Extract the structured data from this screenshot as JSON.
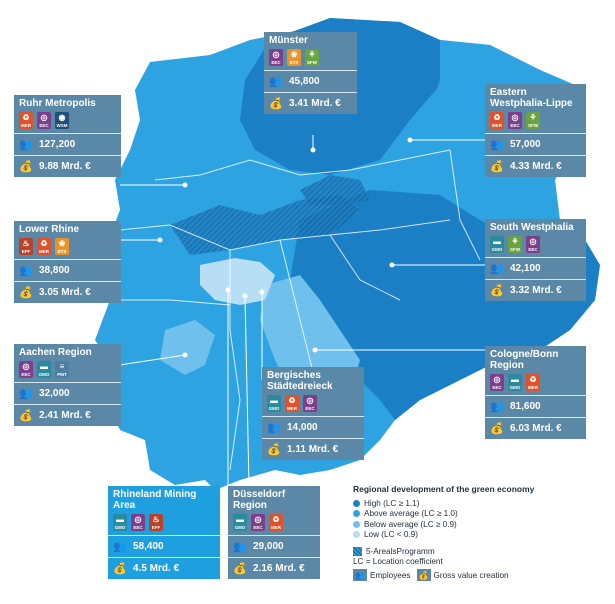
{
  "colors": {
    "high": "#1a7fc4",
    "above_average": "#2ea3e2",
    "below_average": "#6fc0ec",
    "low": "#b7def5",
    "card": "#5b88a6",
    "card_highlight": "#1d9fe0",
    "eec": "#7b3f8c",
    "mer": "#e0522a",
    "ets": "#e8942b",
    "sfw": "#6aa441",
    "gmo": "#2a8aa0",
    "wsm": "#1f4f7a",
    "eff": "#b8432a",
    "pmt": "#4e7ea3"
  },
  "regions": [
    {
      "name": "Münster",
      "icons": [
        {
          "code": "EEC",
          "icon": "lightbulb-icon"
        },
        {
          "code": "ETS",
          "icon": "wind-turbine-icon"
        },
        {
          "code": "SFW",
          "icon": "plant-icon"
        }
      ],
      "employees": "45,800",
      "gva": "3.41 Mrd. €"
    },
    {
      "name": "Ruhr Metropolis",
      "icons": [
        {
          "code": "MER",
          "icon": "recycle-icon"
        },
        {
          "code": "EEC",
          "icon": "lightbulb-icon"
        },
        {
          "code": "WSM",
          "icon": "water-drop-icon"
        }
      ],
      "employees": "127,200",
      "gva": "9.88 Mrd. €"
    },
    {
      "name": "Eastern Westphalia-Lippe",
      "icons": [
        {
          "code": "MER",
          "icon": "recycle-icon"
        },
        {
          "code": "EEC",
          "icon": "lightbulb-icon"
        },
        {
          "code": "SFW",
          "icon": "plant-icon"
        }
      ],
      "employees": "57,000",
      "gva": "4.33 Mrd. €"
    },
    {
      "name": "Lower Rhine",
      "icons": [
        {
          "code": "EFF",
          "icon": "flame-icon"
        },
        {
          "code": "MER",
          "icon": "recycle-icon"
        },
        {
          "code": "ETS",
          "icon": "wind-turbine-icon"
        }
      ],
      "employees": "38,800",
      "gva": "3.05 Mrd. €"
    },
    {
      "name": "South Westphalia",
      "icons": [
        {
          "code": "GMO",
          "icon": "vehicle-icon"
        },
        {
          "code": "SFW",
          "icon": "plant-icon"
        },
        {
          "code": "EEC",
          "icon": "lightbulb-icon"
        }
      ],
      "employees": "42,100",
      "gva": "3.32 Mrd. €"
    },
    {
      "name": "Aachen Region",
      "icons": [
        {
          "code": "EEC",
          "icon": "lightbulb-icon"
        },
        {
          "code": "GMO",
          "icon": "vehicle-icon"
        },
        {
          "code": "PMT",
          "icon": "process-icon"
        }
      ],
      "employees": "32,000",
      "gva": "2.41 Mrd. €"
    },
    {
      "name": "Cologne/Bonn Region",
      "icons": [
        {
          "code": "EEC",
          "icon": "lightbulb-icon"
        },
        {
          "code": "GMO",
          "icon": "vehicle-icon"
        },
        {
          "code": "MER",
          "icon": "recycle-icon"
        }
      ],
      "employees": "81,600",
      "gva": "6.03 Mrd. €"
    },
    {
      "name": "Bergisches Städtedreieck",
      "icons": [
        {
          "code": "GMO",
          "icon": "vehicle-icon"
        },
        {
          "code": "MER",
          "icon": "recycle-icon"
        },
        {
          "code": "EEC",
          "icon": "lightbulb-icon"
        }
      ],
      "employees": "14,000",
      "gva": "1.11 Mrd. €"
    },
    {
      "name": "Rhineland Mining Area",
      "icons": [
        {
          "code": "GMO",
          "icon": "vehicle-icon"
        },
        {
          "code": "EEC",
          "icon": "lightbulb-icon"
        },
        {
          "code": "EFF",
          "icon": "flame-icon"
        }
      ],
      "employees": "58,400",
      "gva": "4.5 Mrd. €"
    },
    {
      "name": "Düsseldorf Region",
      "icons": [
        {
          "code": "GMO",
          "icon": "vehicle-icon"
        },
        {
          "code": "EEC",
          "icon": "lightbulb-icon"
        },
        {
          "code": "MER",
          "icon": "recycle-icon"
        }
      ],
      "employees": "29,000",
      "gva": "2.16 Mrd. €"
    }
  ],
  "legend": {
    "title": "Regional development of the green economy",
    "items": [
      {
        "label": "High (LC ≥ 1.1)",
        "level": "high"
      },
      {
        "label": "Above average (LC ≥ 1.0)",
        "level": "above_average"
      },
      {
        "label": "Below average (LC ≥ 0.9)",
        "level": "below_average"
      },
      {
        "label": "Low (LC < 0.9)",
        "level": "low"
      }
    ],
    "hatch_label": "5-ArealsProgramm",
    "lc_note": "LC = Location coefficient",
    "employees_label": "Employees",
    "gva_label": "Gross value creation"
  }
}
